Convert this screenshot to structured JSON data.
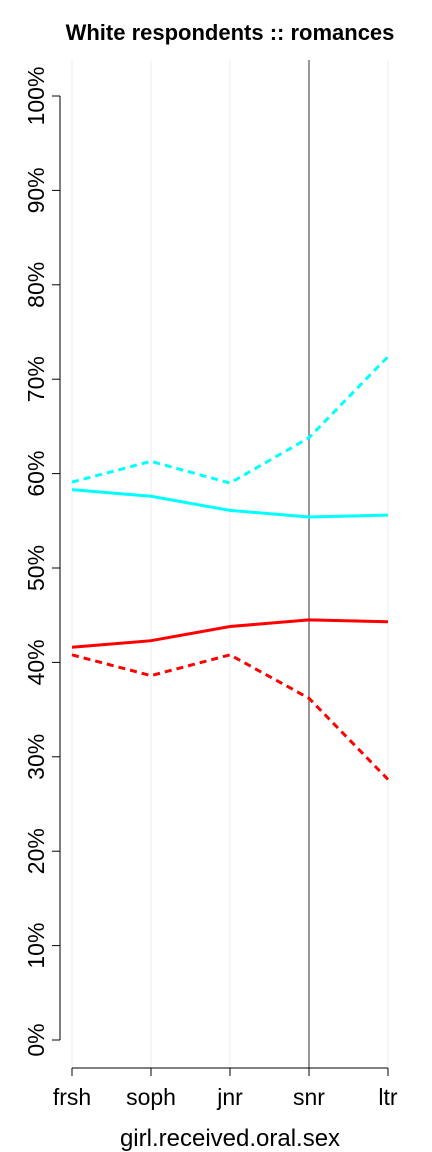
{
  "chart_data": {
    "type": "line",
    "title": "White respondents :: romances",
    "x_label": "girl.received.oral.sex",
    "categories": [
      "frsh",
      "soph",
      "jnr",
      "snr",
      "ltr"
    ],
    "series": [
      {
        "color": "#00ffff",
        "linestyle": "dashed",
        "values": [
          59.1,
          61.3,
          59.0,
          63.8,
          72.4
        ]
      },
      {
        "color": "#00ffff",
        "linestyle": "solid",
        "values": [
          58.3,
          57.6,
          56.1,
          55.4,
          55.6
        ]
      },
      {
        "color": "#ff0000",
        "linestyle": "solid",
        "values": [
          41.6,
          42.3,
          43.8,
          44.5,
          44.3
        ]
      },
      {
        "color": "#ff0000",
        "linestyle": "dashed",
        "values": [
          40.8,
          38.6,
          40.8,
          36.2,
          27.6
        ]
      }
    ],
    "ylim": [
      0,
      100
    ],
    "yticks": [
      {
        "value": 0,
        "label": "0%"
      },
      {
        "value": 10,
        "label": "10%"
      },
      {
        "value": 20,
        "label": "20%"
      },
      {
        "value": 30,
        "label": "30%"
      },
      {
        "value": 40,
        "label": "40%"
      },
      {
        "value": 50,
        "label": "50%"
      },
      {
        "value": 60,
        "label": "60%"
      },
      {
        "value": 70,
        "label": "70%"
      },
      {
        "value": 80,
        "label": "80%"
      },
      {
        "value": 90,
        "label": "90%"
      },
      {
        "value": 100,
        "label": "100%"
      }
    ],
    "grid": "x",
    "vline": "snr"
  }
}
